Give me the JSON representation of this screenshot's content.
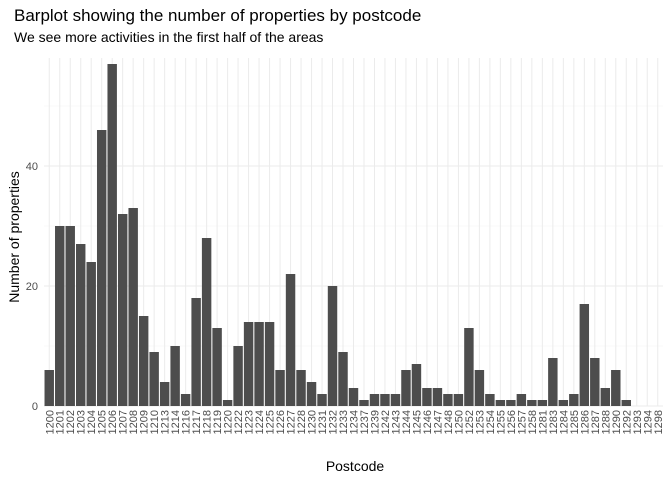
{
  "chart_data": {
    "type": "bar",
    "title": "Barplot showing the number of properties by postcode",
    "subtitle": "We see more activities in the first half of the areas",
    "xlabel": "Postcode",
    "ylabel": "Number of properties",
    "ylim": [
      0,
      58
    ],
    "yticks": [
      0,
      20,
      40
    ],
    "grid": true,
    "colors": {
      "bar": "#4d4d4d",
      "grid": "#ebebeb"
    },
    "categories": [
      "1200",
      "1201",
      "1202",
      "1203",
      "1204",
      "1205",
      "1206",
      "1207",
      "1208",
      "1209",
      "1210",
      "1213",
      "1214",
      "1216",
      "1217",
      "1218",
      "1219",
      "1220",
      "1222",
      "1223",
      "1224",
      "1225",
      "1226",
      "1227",
      "1228",
      "1230",
      "1231",
      "1232",
      "1233",
      "1234",
      "1237",
      "1239",
      "1242",
      "1243",
      "1244",
      "1245",
      "1246",
      "1247",
      "1248",
      "1250",
      "1252",
      "1253",
      "1254",
      "1255",
      "1256",
      "1257",
      "1258",
      "1281",
      "1283",
      "1284",
      "1285",
      "1286",
      "1287",
      "1288",
      "1290",
      "1292",
      "1293",
      "1294",
      "1298"
    ],
    "values": [
      6,
      30,
      30,
      27,
      24,
      46,
      57,
      32,
      33,
      15,
      9,
      4,
      10,
      2,
      18,
      28,
      13,
      1,
      10,
      14,
      14,
      14,
      6,
      22,
      6,
      4,
      2,
      20,
      9,
      3,
      1,
      2,
      2,
      2,
      6,
      7,
      3,
      3,
      2,
      2,
      13,
      6,
      2,
      1,
      1,
      2,
      1,
      1,
      8,
      1,
      2,
      17,
      8,
      3,
      6,
      1,
      0,
      0,
      0
    ]
  }
}
